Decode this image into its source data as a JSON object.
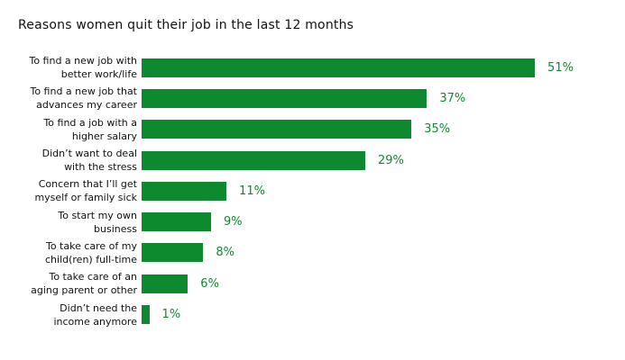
{
  "title": "Reasons women quit their job in the last 12 months",
  "colors": {
    "bar": "#0e8a2e",
    "value_label": "#0e8a2e",
    "title_text": "#121212",
    "category_text": "#111111",
    "background": "#ffffff"
  },
  "rows": [
    {
      "line1": "To find a new job with",
      "line2": "better work/life",
      "value_label": "51%"
    },
    {
      "line1": "To find a new job that",
      "line2": "advances my career",
      "value_label": "37%"
    },
    {
      "line1": "To find a job with a",
      "line2": "higher salary",
      "value_label": "35%"
    },
    {
      "line1": "Didn’t want to deal",
      "line2": "with the stress",
      "value_label": "29%"
    },
    {
      "line1": "Concern that I’ll get",
      "line2": "myself or family sick",
      "value_label": "11%"
    },
    {
      "line1": "To start my own",
      "line2": "business",
      "value_label": "9%"
    },
    {
      "line1": "To take care of my",
      "line2": "child(ren) full-time",
      "value_label": "8%"
    },
    {
      "line1": "To take care of an",
      "line2": "aging parent or other",
      "value_label": "6%"
    },
    {
      "line1": "Didn’t need the",
      "line2": "income anymore",
      "value_label": "1%"
    }
  ],
  "chart_data": {
    "type": "bar",
    "orientation": "horizontal",
    "title": "Reasons women quit their job in the last 12 months",
    "categories": [
      "To find a new job with better work/life",
      "To find a new job that advances my career",
      "To find a job with a higher salary",
      "Didn’t want to deal with the stress",
      "Concern that I’ll get myself or family sick",
      "To start my own business",
      "To take care of my child(ren) full-time",
      "To take care of an aging parent or other",
      "Didn’t need the income anymore"
    ],
    "values": [
      51,
      37,
      35,
      29,
      11,
      9,
      8,
      6,
      1
    ],
    "value_labels": [
      "51%",
      "37%",
      "35%",
      "29%",
      "11%",
      "9%",
      "8%",
      "6%",
      "1%"
    ],
    "xlabel": "",
    "ylabel": "",
    "xlim": [
      0,
      51
    ],
    "grid": false,
    "legend": false,
    "bar_color": "#0e8a2e"
  }
}
